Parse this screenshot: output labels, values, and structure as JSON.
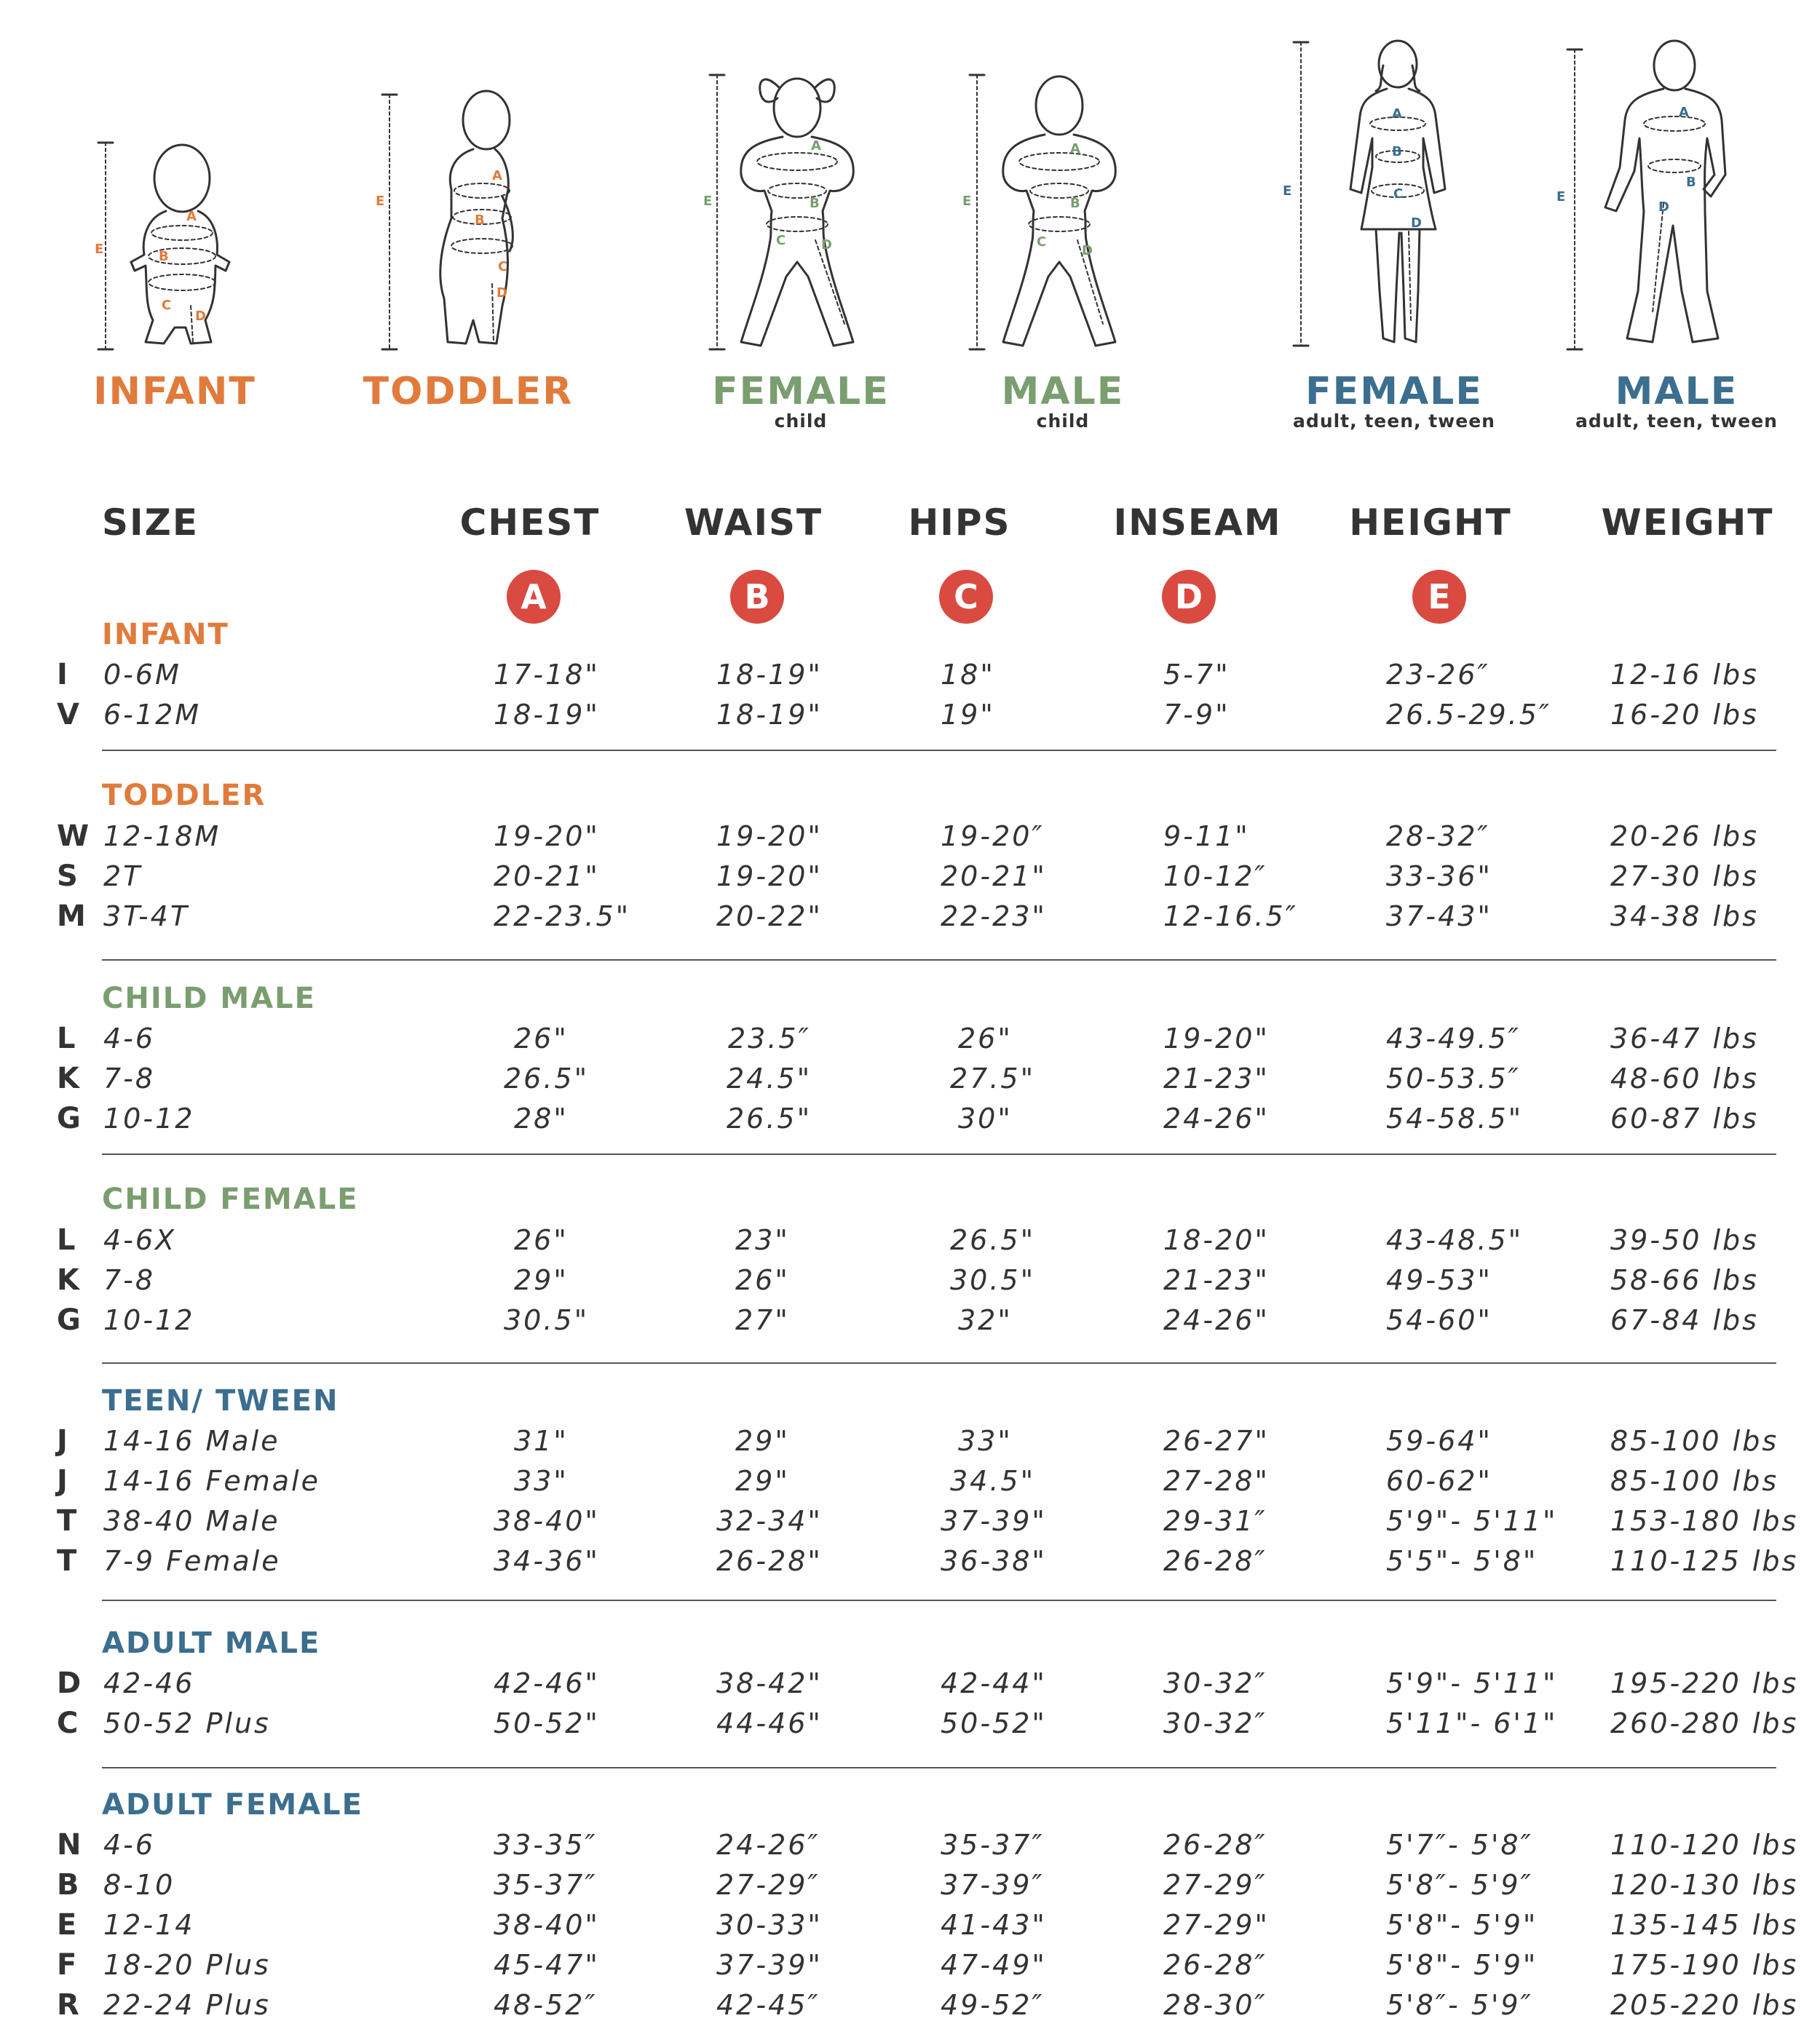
{
  "colors": {
    "orange": "#e07b3c",
    "green": "#7a9e6f",
    "blue": "#3b6e8f",
    "badge": "#d94a41",
    "text": "#333333"
  },
  "figures": {
    "infant": {
      "title": "INFANT"
    },
    "toddler": {
      "title": "TODDLER"
    },
    "child_female": {
      "title": "FEMALE",
      "sub": "child"
    },
    "child_male": {
      "title": "MALE",
      "sub": "child"
    },
    "adult_female": {
      "title": "FEMALE",
      "sub": "adult, teen, tween"
    },
    "adult_male": {
      "title": "MALE",
      "sub": "adult, teen, tween"
    },
    "marker_letters": {
      "a": "A",
      "b": "B",
      "c": "C",
      "d": "D",
      "e": "E"
    }
  },
  "headers": {
    "size": "SIZE",
    "chest": "CHEST",
    "waist": "WAIST",
    "hips": "HIPS",
    "inseam": "INSEAM",
    "height": "HEIGHT",
    "weight": "WEIGHT"
  },
  "badges": {
    "chest": "A",
    "waist": "B",
    "hips": "C",
    "inseam": "D",
    "height": "E"
  },
  "groups": [
    {
      "title": "INFANT",
      "rows": [
        {
          "code": "I",
          "size": "0-6M",
          "chest": "17-18\"",
          "waist": "18-19\"",
          "hips": "18\"",
          "inseam": "5-7\"",
          "height": "23-26″",
          "weight": "12-16 lbs"
        },
        {
          "code": "V",
          "size": "6-12M",
          "chest": "18-19\"",
          "waist": "18-19\"",
          "hips": "19\"",
          "inseam": "7-9\"",
          "height": "26.5-29.5″",
          "weight": "16-20 lbs"
        }
      ]
    },
    {
      "title": "TODDLER",
      "rows": [
        {
          "code": "W",
          "size": "12-18M",
          "chest": "19-20\"",
          "waist": "19-20\"",
          "hips": "19-20″",
          "inseam": "9-11\"",
          "height": "28-32″",
          "weight": "20-26 lbs"
        },
        {
          "code": "S",
          "size": "2T",
          "chest": "20-21\"",
          "waist": "19-20\"",
          "hips": "20-21\"",
          "inseam": "10-12″",
          "height": "33-36\"",
          "weight": "27-30 lbs"
        },
        {
          "code": "M",
          "size": "3T-4T",
          "chest": "22-23.5\"",
          "waist": "20-22\"",
          "hips": "22-23\"",
          "inseam": "12-16.5″",
          "height": "37-43\"",
          "weight": "34-38 lbs"
        }
      ]
    },
    {
      "title": "CHILD MALE",
      "rows": [
        {
          "code": "L",
          "size": "4-6",
          "chest": "26\"",
          "waist": "23.5″",
          "hips": "26\"",
          "inseam": "19-20\"",
          "height": "43-49.5″",
          "weight": "36-47 lbs"
        },
        {
          "code": "K",
          "size": "7-8",
          "chest": "26.5\"",
          "waist": "24.5\"",
          "hips": "27.5\"",
          "inseam": "21-23\"",
          "height": "50-53.5″",
          "weight": "48-60 lbs"
        },
        {
          "code": "G",
          "size": "10-12",
          "chest": "28\"",
          "waist": "26.5\"",
          "hips": "30\"",
          "inseam": "24-26\"",
          "height": "54-58.5\"",
          "weight": "60-87 lbs"
        }
      ]
    },
    {
      "title": "CHILD FEMALE",
      "rows": [
        {
          "code": "L",
          "size": "4-6X",
          "chest": "26\"",
          "waist": "23\"",
          "hips": "26.5\"",
          "inseam": "18-20\"",
          "height": "43-48.5\"",
          "weight": "39-50 lbs"
        },
        {
          "code": "K",
          "size": "7-8",
          "chest": "29\"",
          "waist": "26\"",
          "hips": "30.5\"",
          "inseam": "21-23\"",
          "height": "49-53\"",
          "weight": "58-66 lbs"
        },
        {
          "code": "G",
          "size": "10-12",
          "chest": "30.5\"",
          "waist": "27\"",
          "hips": "32\"",
          "inseam": "24-26\"",
          "height": "54-60\"",
          "weight": "67-84 lbs"
        }
      ]
    },
    {
      "title": "TEEN/ TWEEN",
      "rows": [
        {
          "code": "J",
          "size": "14-16 Male",
          "chest": "31\"",
          "waist": "29\"",
          "hips": "33\"",
          "inseam": "26-27\"",
          "height": "59-64\"",
          "weight": "85-100 lbs"
        },
        {
          "code": "J",
          "size": "14-16 Female",
          "chest": "33\"",
          "waist": "29\"",
          "hips": "34.5\"",
          "inseam": "27-28\"",
          "height": "60-62\"",
          "weight": "85-100 lbs"
        },
        {
          "code": "T",
          "size": "38-40 Male",
          "chest": "38-40\"",
          "waist": "32-34\"",
          "hips": "37-39\"",
          "inseam": "29-31″",
          "height": "5'9\"- 5'11\"",
          "weight": "153-180 lbs"
        },
        {
          "code": "T",
          "size": "7-9 Female",
          "chest": "34-36\"",
          "waist": "26-28\"",
          "hips": "36-38\"",
          "inseam": "26-28″",
          "height": "5'5\"- 5'8\"",
          "weight": "110-125 lbs"
        }
      ]
    },
    {
      "title": "ADULT MALE",
      "rows": [
        {
          "code": "D",
          "size": "42-46",
          "chest": "42-46\"",
          "waist": "38-42\"",
          "hips": "42-44\"",
          "inseam": "30-32″",
          "height": "5'9\"- 5'11\"",
          "weight": "195-220 lbs"
        },
        {
          "code": "C",
          "size": "50-52 Plus",
          "chest": "50-52\"",
          "waist": "44-46\"",
          "hips": "50-52\"",
          "inseam": "30-32″",
          "height": "5'11\"- 6'1\"",
          "weight": "260-280 lbs"
        }
      ]
    },
    {
      "title": "ADULT FEMALE",
      "rows": [
        {
          "code": "N",
          "size": "4-6",
          "chest": "33-35″",
          "waist": "24-26″",
          "hips": "35-37″",
          "inseam": "26-28″",
          "height": "5'7″- 5'8″",
          "weight": "110-120 lbs"
        },
        {
          "code": "B",
          "size": "8-10",
          "chest": "35-37″",
          "waist": "27-29″",
          "hips": "37-39″",
          "inseam": "27-29″",
          "height": "5'8″- 5'9″",
          "weight": "120-130 lbs"
        },
        {
          "code": "E",
          "size": "12-14",
          "chest": "38-40\"",
          "waist": "30-33\"",
          "hips": "41-43\"",
          "inseam": "27-29\"",
          "height": "5'8\"- 5'9\"",
          "weight": "135-145 lbs"
        },
        {
          "code": "F",
          "size": "18-20 Plus",
          "chest": "45-47\"",
          "waist": "37-39\"",
          "hips": "47-49\"",
          "inseam": "26-28″",
          "height": "5'8\"- 5'9\"",
          "weight": "175-190 lbs"
        },
        {
          "code": "R",
          "size": "22-24 Plus",
          "chest": "48-52″",
          "waist": "42-45″",
          "hips": "49-52″",
          "inseam": "28-30″",
          "height": "5'8″- 5'9″",
          "weight": "205-220 lbs"
        }
      ]
    }
  ]
}
